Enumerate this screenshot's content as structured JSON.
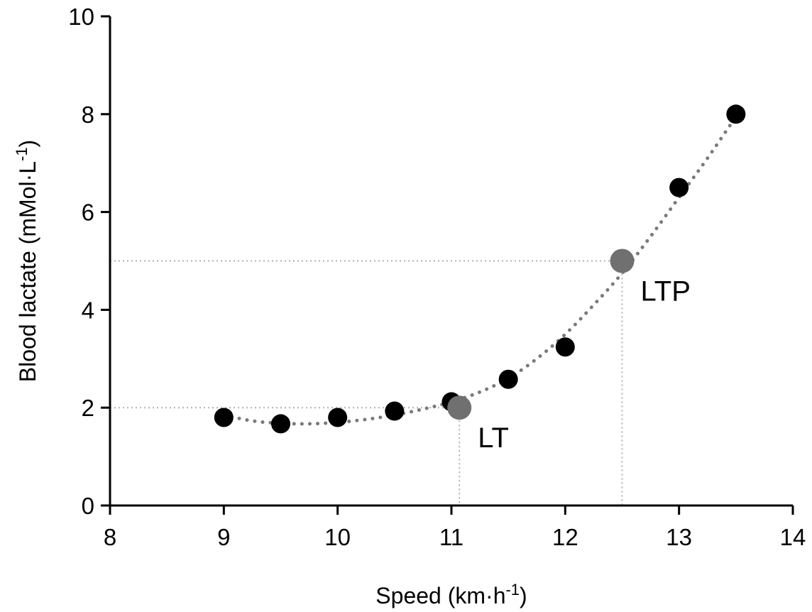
{
  "chart_data": {
    "type": "scatter",
    "x": [
      9,
      9.5,
      10,
      10.5,
      11,
      11.5,
      12,
      13,
      13.5
    ],
    "y": [
      1.8,
      1.67,
      1.8,
      1.93,
      2.12,
      2.58,
      3.24,
      6.5,
      8.0
    ],
    "fit": {
      "style": "dotted",
      "x": [
        9.0,
        9.25,
        9.5,
        9.75,
        10.0,
        10.25,
        10.5,
        10.75,
        11.0,
        11.25,
        11.5,
        11.75,
        12.0,
        12.25,
        12.5,
        12.75,
        13.0,
        13.25,
        13.5
      ],
      "y": [
        1.85,
        1.73,
        1.68,
        1.67,
        1.7,
        1.76,
        1.85,
        1.97,
        2.12,
        2.32,
        2.6,
        3.0,
        3.5,
        4.1,
        4.75,
        5.5,
        6.3,
        7.1,
        7.95
      ]
    },
    "thresholds": [
      {
        "label": "LT",
        "x": 11.07,
        "y": 2.0
      },
      {
        "label": "LTP",
        "x": 12.5,
        "y": 5.0
      }
    ],
    "xlabel": "Speed (km·h",
    "xlabel_sup": "-1",
    "xlabel_end": ")",
    "ylabel": "Blood lactate (mMol·L",
    "ylabel_sup": "-1",
    "ylabel_end": ")",
    "xlim": [
      8,
      14
    ],
    "ylim": [
      0,
      10
    ],
    "xticks": [
      8,
      9,
      10,
      11,
      12,
      13,
      14
    ],
    "yticks": [
      0,
      2,
      4,
      6,
      8,
      10
    ],
    "grid": false,
    "colors": {
      "points": "#000000",
      "thresholds": "#707070",
      "fit": "#7a7a7a",
      "guides": "#b0b0b0",
      "axes": "#000000"
    }
  }
}
